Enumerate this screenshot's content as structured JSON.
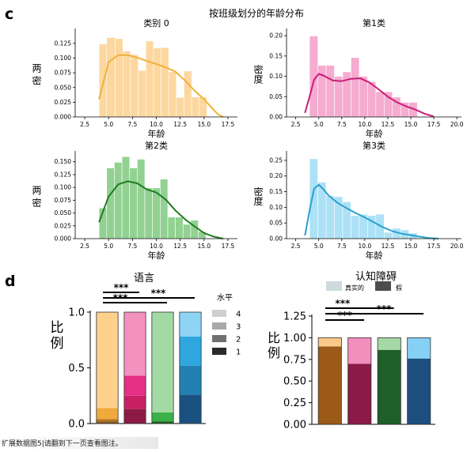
{
  "panel_c": {
    "letter": "c",
    "suptitle": "按班级划分的年龄分布"
  },
  "panel_d": {
    "letter": "d"
  },
  "footnote": "扩展数据图5|请翻到下一页查看图注。",
  "chart_data": [
    {
      "type": "histogram",
      "title": "类别 0",
      "xlabel": "年龄",
      "ylabel": "两 密",
      "color": "#f0b23a",
      "bar_color": "#fbd08e",
      "xlim": [
        1.5,
        18.5
      ],
      "ylim": [
        0,
        0.145
      ],
      "xticks": [
        "2.5",
        "5.0",
        "7.5",
        "10.0",
        "12.5",
        "15.0",
        "17.5"
      ],
      "yticks": [
        "0.000",
        "0.025",
        "0.050",
        "0.075",
        "0.100",
        "0.125"
      ],
      "bins": [
        {
          "x0": 4.0,
          "x1": 4.8,
          "h": 0.124
        },
        {
          "x0": 4.8,
          "x1": 5.7,
          "h": 0.135
        },
        {
          "x0": 5.7,
          "x1": 6.5,
          "h": 0.133
        },
        {
          "x0": 6.5,
          "x1": 7.3,
          "h": 0.112
        },
        {
          "x0": 7.3,
          "x1": 8.1,
          "h": 0.106
        },
        {
          "x0": 8.1,
          "x1": 8.9,
          "h": 0.079
        },
        {
          "x0": 8.9,
          "x1": 9.7,
          "h": 0.129
        },
        {
          "x0": 9.7,
          "x1": 10.5,
          "h": 0.117
        },
        {
          "x0": 10.5,
          "x1": 11.3,
          "h": 0.118
        },
        {
          "x0": 11.3,
          "x1": 12.1,
          "h": 0.077
        },
        {
          "x0": 12.1,
          "x1": 12.9,
          "h": 0.033
        },
        {
          "x0": 12.9,
          "x1": 13.7,
          "h": 0.078
        },
        {
          "x0": 13.7,
          "x1": 14.5,
          "h": 0.034
        },
        {
          "x0": 14.5,
          "x1": 15.3,
          "h": 0.034
        }
      ],
      "kde": [
        [
          4.0,
          0.03
        ],
        [
          5.0,
          0.093
        ],
        [
          6.0,
          0.105
        ],
        [
          7.0,
          0.105
        ],
        [
          8.0,
          0.101
        ],
        [
          9.0,
          0.095
        ],
        [
          10.0,
          0.09
        ],
        [
          11.0,
          0.084
        ],
        [
          12.0,
          0.077
        ],
        [
          13.0,
          0.062
        ],
        [
          14.0,
          0.045
        ],
        [
          15.0,
          0.03
        ],
        [
          16.0,
          0.012
        ],
        [
          16.5,
          0.004
        ],
        [
          17.0,
          0.0
        ]
      ]
    },
    {
      "type": "histogram",
      "title": "第1类",
      "xlabel": "年龄",
      "ylabel": "密度",
      "color": "#c81e78",
      "bar_color": "#f59cc8",
      "xlim": [
        1.5,
        20.5
      ],
      "ylim": [
        0,
        0.21
      ],
      "xticks": [
        "2.5",
        "5.0",
        "7.5",
        "10.0",
        "12.5",
        "15.0",
        "17.5",
        "20.0"
      ],
      "yticks": [
        "0.00",
        "0.05",
        "0.10",
        "0.15",
        "0.20"
      ],
      "bins": [
        {
          "x0": 4.0,
          "x1": 4.9,
          "h": 0.199
        },
        {
          "x0": 4.9,
          "x1": 5.8,
          "h": 0.127
        },
        {
          "x0": 5.8,
          "x1": 6.7,
          "h": 0.127
        },
        {
          "x0": 6.7,
          "x1": 7.6,
          "h": 0.1
        },
        {
          "x0": 7.6,
          "x1": 8.5,
          "h": 0.111
        },
        {
          "x0": 8.5,
          "x1": 9.4,
          "h": 0.146
        },
        {
          "x0": 9.4,
          "x1": 10.3,
          "h": 0.1
        },
        {
          "x0": 10.3,
          "x1": 11.2,
          "h": 0.087
        },
        {
          "x0": 11.2,
          "x1": 12.1,
          "h": 0.062
        },
        {
          "x0": 12.1,
          "x1": 13.0,
          "h": 0.062
        },
        {
          "x0": 13.0,
          "x1": 13.9,
          "h": 0.049
        },
        {
          "x0": 13.9,
          "x1": 14.8,
          "h": 0.036
        },
        {
          "x0": 14.8,
          "x1": 15.7,
          "h": 0.036
        }
      ],
      "kde": [
        [
          3.5,
          0.01
        ],
        [
          4.0,
          0.05
        ],
        [
          4.5,
          0.092
        ],
        [
          5.0,
          0.106
        ],
        [
          5.5,
          0.102
        ],
        [
          6.5,
          0.09
        ],
        [
          7.5,
          0.088
        ],
        [
          8.5,
          0.094
        ],
        [
          9.5,
          0.095
        ],
        [
          10.5,
          0.085
        ],
        [
          11.5,
          0.068
        ],
        [
          12.5,
          0.05
        ],
        [
          13.5,
          0.036
        ],
        [
          14.5,
          0.026
        ],
        [
          15.5,
          0.018
        ],
        [
          16.5,
          0.008
        ],
        [
          17.5,
          0.001
        ]
      ]
    },
    {
      "type": "histogram",
      "title": "第2类",
      "xlabel": "年龄",
      "ylabel": "两 密",
      "color": "#1f7d1f",
      "bar_color": "#7fc97f",
      "xlim": [
        1.5,
        18.5
      ],
      "ylim": [
        0,
        0.165
      ],
      "xticks": [
        "2.5",
        "5.0",
        "7.5",
        "10.0",
        "12.5",
        "15.0",
        "17.5"
      ],
      "yticks": [
        "0.000",
        "0.025",
        "0.050",
        "0.075",
        "0.100",
        "0.125",
        "0.150"
      ],
      "bins": [
        {
          "x0": 4.0,
          "x1": 4.8,
          "h": 0.06
        },
        {
          "x0": 4.8,
          "x1": 5.6,
          "h": 0.138
        },
        {
          "x0": 5.6,
          "x1": 6.4,
          "h": 0.149
        },
        {
          "x0": 6.4,
          "x1": 7.2,
          "h": 0.16
        },
        {
          "x0": 7.2,
          "x1": 8.0,
          "h": 0.138
        },
        {
          "x0": 8.0,
          "x1": 8.8,
          "h": 0.155
        },
        {
          "x0": 8.8,
          "x1": 9.6,
          "h": 0.099
        },
        {
          "x0": 9.6,
          "x1": 10.4,
          "h": 0.099
        },
        {
          "x0": 10.4,
          "x1": 11.2,
          "h": 0.116
        },
        {
          "x0": 11.2,
          "x1": 12.0,
          "h": 0.042
        },
        {
          "x0": 12.0,
          "x1": 12.8,
          "h": 0.042
        },
        {
          "x0": 12.8,
          "x1": 13.6,
          "h": 0.028
        },
        {
          "x0": 13.6,
          "x1": 14.4,
          "h": 0.036
        },
        {
          "x0": 14.4,
          "x1": 15.2,
          "h": 0.014
        }
      ],
      "kde": [
        [
          4.0,
          0.032
        ],
        [
          5.0,
          0.082
        ],
        [
          6.0,
          0.106
        ],
        [
          7.0,
          0.112
        ],
        [
          8.0,
          0.108
        ],
        [
          9.0,
          0.096
        ],
        [
          10.0,
          0.09
        ],
        [
          11.0,
          0.076
        ],
        [
          12.0,
          0.055
        ],
        [
          13.0,
          0.038
        ],
        [
          14.0,
          0.024
        ],
        [
          15.0,
          0.011
        ],
        [
          16.0,
          0.004
        ],
        [
          17.0,
          0.0
        ]
      ]
    },
    {
      "type": "histogram",
      "title": "第3类",
      "xlabel": "年龄",
      "ylabel": "密度",
      "color": "#2aa0cf",
      "bar_color": "#9edcf4",
      "xlim": [
        1.5,
        20.5
      ],
      "ylim": [
        0,
        0.27
      ],
      "xticks": [
        "2.5",
        "5.0",
        "7.5",
        "10.0",
        "12.5",
        "15.0",
        "17.5",
        "20.0"
      ],
      "yticks": [
        "0.00",
        "0.05",
        "0.10",
        "0.15",
        "0.20",
        "0.25"
      ],
      "bins": [
        {
          "x0": 4.0,
          "x1": 4.9,
          "h": 0.255
        },
        {
          "x0": 4.9,
          "x1": 5.8,
          "h": 0.18
        },
        {
          "x0": 5.8,
          "x1": 6.7,
          "h": 0.137
        },
        {
          "x0": 6.7,
          "x1": 7.6,
          "h": 0.134
        },
        {
          "x0": 7.6,
          "x1": 8.5,
          "h": 0.118
        },
        {
          "x0": 8.5,
          "x1": 9.4,
          "h": 0.074
        },
        {
          "x0": 9.4,
          "x1": 10.3,
          "h": 0.078
        },
        {
          "x0": 10.3,
          "x1": 11.2,
          "h": 0.074
        },
        {
          "x0": 11.2,
          "x1": 12.1,
          "h": 0.078
        },
        {
          "x0": 12.1,
          "x1": 13.0,
          "h": 0.02
        },
        {
          "x0": 13.0,
          "x1": 13.9,
          "h": 0.033
        },
        {
          "x0": 13.9,
          "x1": 14.8,
          "h": 0.028
        },
        {
          "x0": 14.8,
          "x1": 15.7,
          "h": 0.018
        }
      ],
      "kde": [
        [
          3.5,
          0.01
        ],
        [
          4.0,
          0.09
        ],
        [
          4.5,
          0.16
        ],
        [
          5.0,
          0.172
        ],
        [
          5.5,
          0.158
        ],
        [
          6.0,
          0.14
        ],
        [
          7.0,
          0.115
        ],
        [
          8.0,
          0.098
        ],
        [
          9.0,
          0.082
        ],
        [
          10.0,
          0.068
        ],
        [
          11.0,
          0.052
        ],
        [
          12.0,
          0.036
        ],
        [
          13.0,
          0.024
        ],
        [
          14.0,
          0.016
        ],
        [
          15.0,
          0.011
        ],
        [
          16.0,
          0.006
        ],
        [
          17.0,
          0.002
        ],
        [
          18.0,
          0.0
        ]
      ]
    },
    {
      "type": "stacked_bar",
      "title": "语言",
      "ylabel": "比\n例",
      "ylim": [
        0,
        1.0
      ],
      "yticks": [
        "0.0",
        "0.5",
        "1.0"
      ],
      "legend": {
        "title": "水平",
        "placement": "right",
        "items": [
          {
            "label": "4",
            "color": "#cfcfcf"
          },
          {
            "label": "3",
            "color": "#a9a9a9"
          },
          {
            "label": "2",
            "color": "#707070"
          },
          {
            "label": "1",
            "color": "#2a2a2a"
          }
        ]
      },
      "significance": [
        {
          "from": 0,
          "to": 1,
          "label": "***"
        },
        {
          "from": 0,
          "to": 2,
          "label": "***"
        },
        {
          "from": 0,
          "to": 3,
          "label": "***"
        }
      ],
      "bars": [
        {
          "segments": [
            {
              "value": 0.02,
              "color": "#8a5a1c"
            },
            {
              "value": 0.02,
              "color": "#b5721e"
            },
            {
              "value": 0.1,
              "color": "#f2a93b"
            },
            {
              "value": 0.86,
              "color": "#fdd08c"
            }
          ]
        },
        {
          "segments": [
            {
              "value": 0.13,
              "color": "#8c1a44"
            },
            {
              "value": 0.12,
              "color": "#c71f63"
            },
            {
              "value": 0.18,
              "color": "#e52e86"
            },
            {
              "value": 0.57,
              "color": "#f391bf"
            }
          ]
        },
        {
          "segments": [
            {
              "value": 0.02,
              "color": "#1e5f1e"
            },
            {
              "value": 0.08,
              "color": "#39b04a"
            },
            {
              "value": 0.9,
              "color": "#a3d9a3"
            }
          ]
        },
        {
          "segments": [
            {
              "value": 0.26,
              "color": "#1b5180"
            },
            {
              "value": 0.26,
              "color": "#2280b3"
            },
            {
              "value": 0.26,
              "color": "#2ea7de"
            },
            {
              "value": 0.22,
              "color": "#8fd4f5"
            }
          ]
        }
      ]
    },
    {
      "type": "stacked_bar",
      "title": "认知障碍",
      "ylabel": "比\n例",
      "ylim": [
        0,
        1.25
      ],
      "yticks": [
        "0.00",
        "0.25",
        "0.50",
        "0.75",
        "1.00",
        "1.25"
      ],
      "legend": {
        "placement": "top",
        "items": [
          {
            "label": "真实的",
            "color": "#c8d6da"
          },
          {
            "label": "假",
            "color": "#3a3a3a"
          }
        ]
      },
      "significance": [
        {
          "from": 0,
          "to": 1,
          "label": "***"
        },
        {
          "from": 0,
          "to": 2,
          "label": "***"
        },
        {
          "from": 0,
          "to": 3,
          "label": "***"
        }
      ],
      "bars": [
        {
          "segments": [
            {
              "value": 0.9,
              "color": "#9b5a18"
            },
            {
              "value": 0.1,
              "color": "#fdc98a"
            }
          ]
        },
        {
          "segments": [
            {
              "value": 0.7,
              "color": "#8b1a48"
            },
            {
              "value": 0.3,
              "color": "#f28fbd"
            }
          ]
        },
        {
          "segments": [
            {
              "value": 0.86,
              "color": "#1e5e28"
            },
            {
              "value": 0.14,
              "color": "#a5d8a5"
            }
          ]
        },
        {
          "segments": [
            {
              "value": 0.76,
              "color": "#1c4f80"
            },
            {
              "value": 0.24,
              "color": "#85d0f4"
            }
          ]
        }
      ]
    }
  ]
}
